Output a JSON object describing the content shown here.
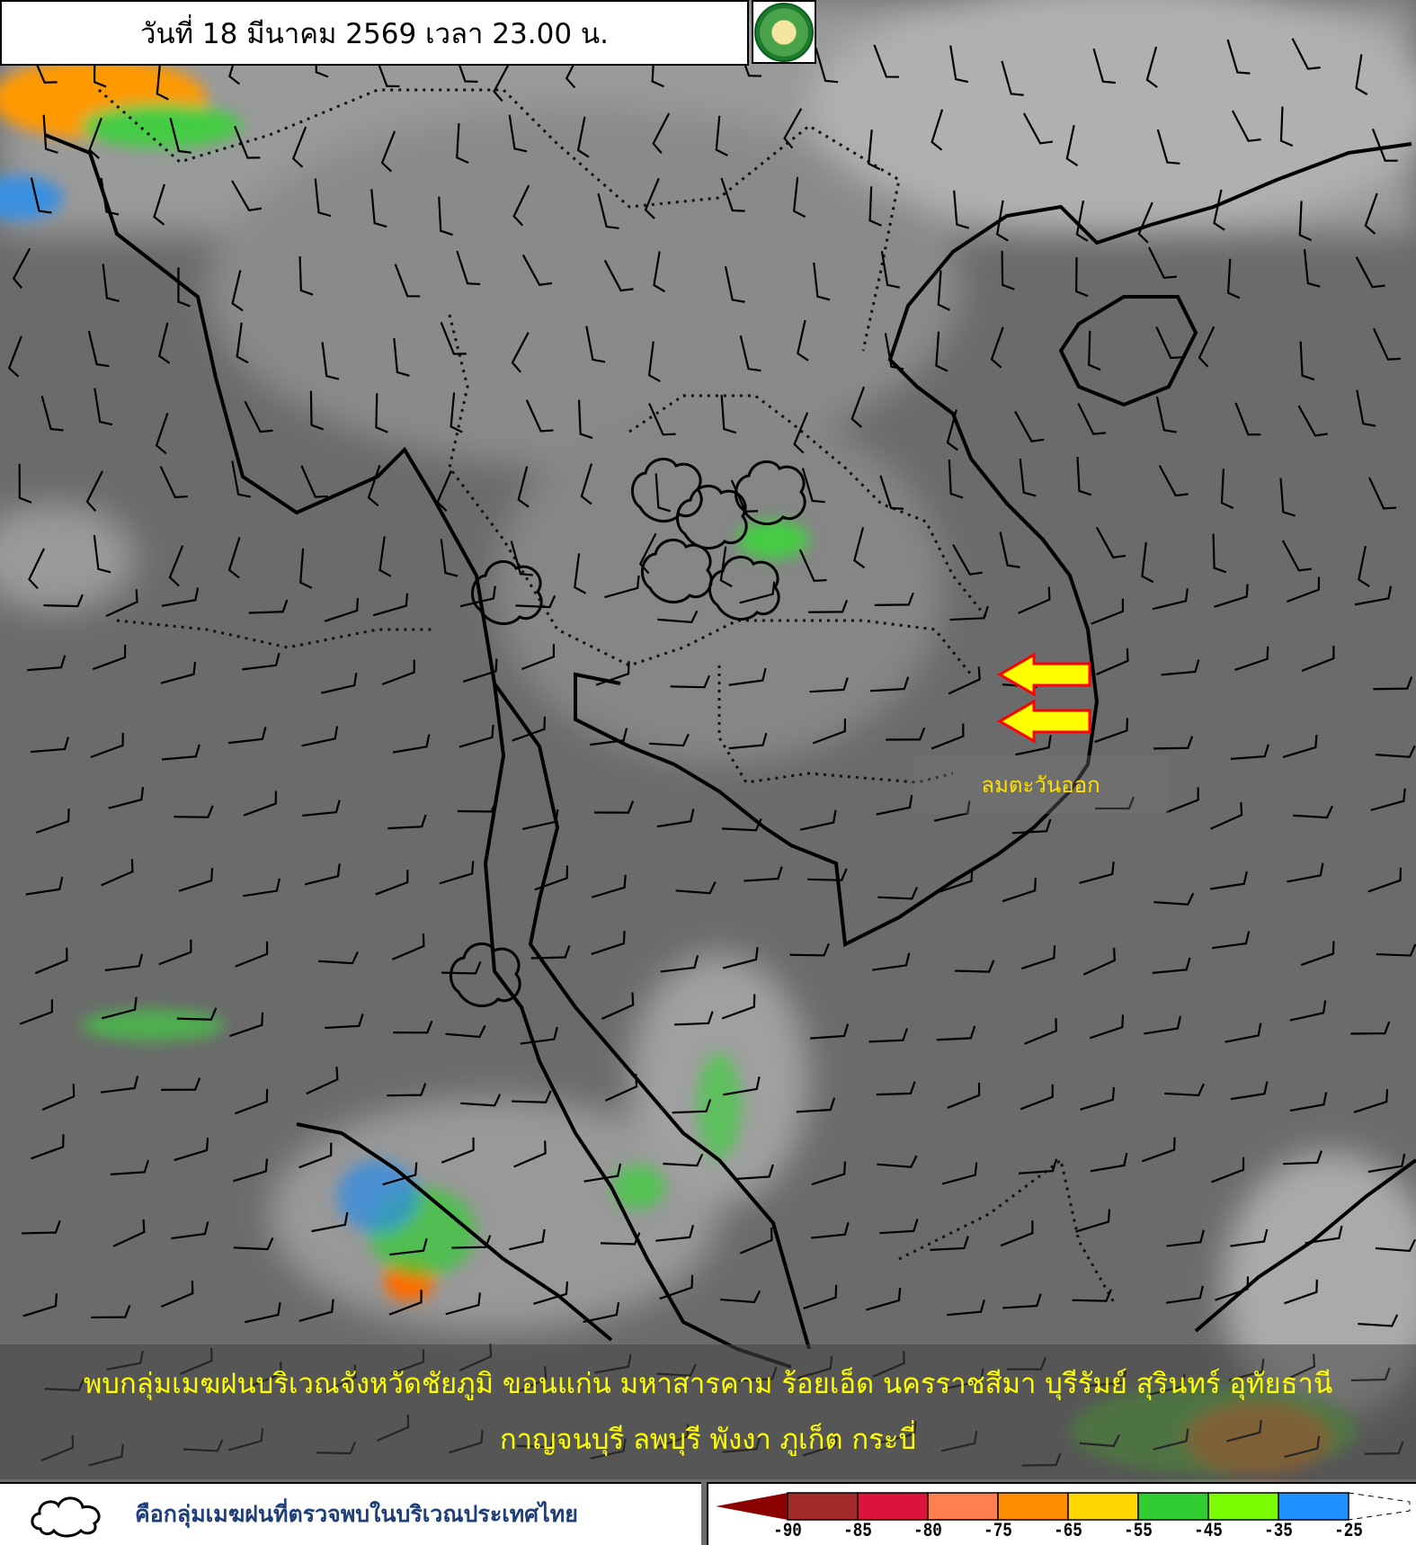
{
  "header": {
    "title": "วันที่ 18 มีนาคม 2569 เวลา 23.00 น.",
    "logo": "กรมอุตุนิยมวิทยา METEOROLOGICAL DEPARTMENT"
  },
  "annotations": {
    "wind_label": "ลมตะวันออก",
    "arrow_color": "#ffff00",
    "arrow_outline": "#ff0000"
  },
  "summary": {
    "line1": "พบกลุ่มเมฆฝนบริเวณจังหวัดชัยภูมิ ขอนแก่น มหาสารคาม ร้อยเอ็ด นครราชสีมา บุรีรัมย์ สุรินทร์ อุทัยธานี",
    "line2": "กาญจนบุรี ลพบุรี พังงา ภูเก็ต กระบี่"
  },
  "legend": {
    "cloud_icon": "rain-cloud-outline-icon",
    "cloud_text": "คือกลุ่มเมฆฝนที่ตรวจพบในบริเวณประเทศไทย",
    "colorbar": {
      "ticks": [
        "-90",
        "-85",
        "-80",
        "-75",
        "-65",
        "-55",
        "-45",
        "-35",
        "-25"
      ],
      "colors": [
        "#a52a2a",
        "#dc143c",
        "#ff7f50",
        "#ff8c00",
        "#ffd700",
        "#32cd32",
        "#7cfc00",
        "#1e90ff"
      ],
      "below_color": "#8b0000"
    }
  }
}
